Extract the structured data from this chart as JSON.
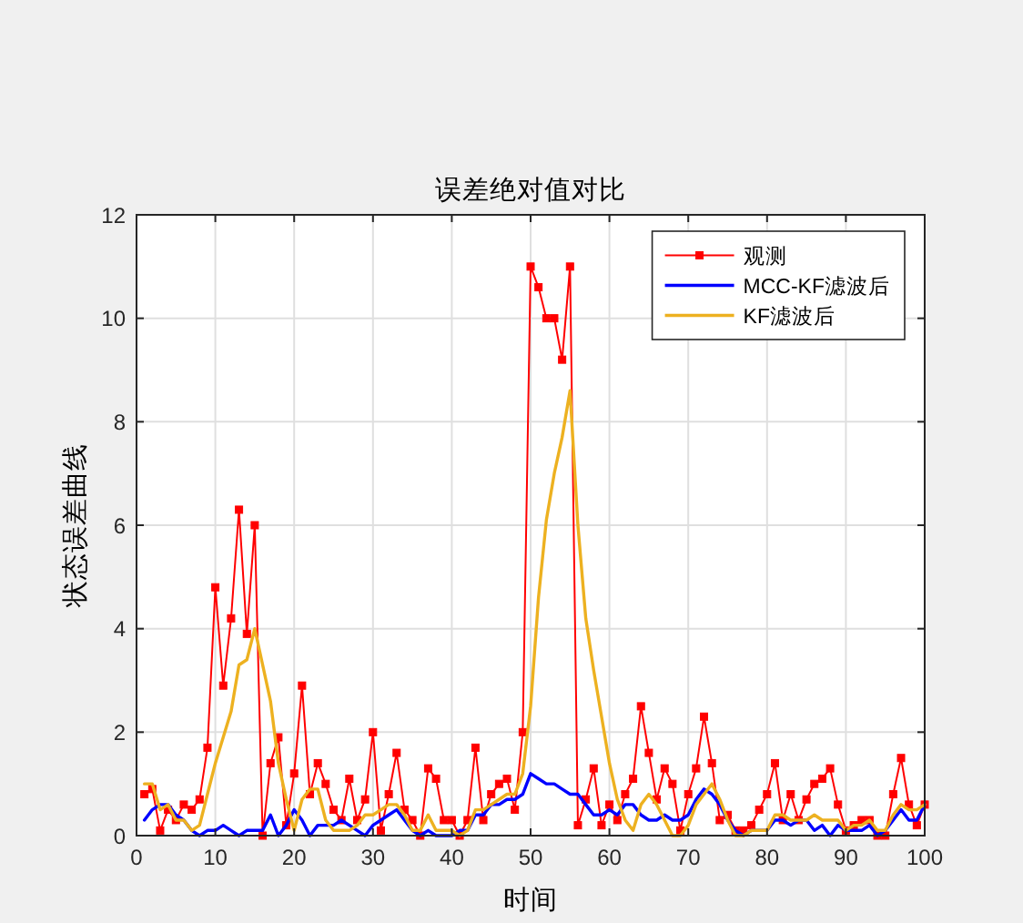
{
  "chart_data": {
    "type": "line",
    "title": "误差绝对值对比",
    "xlabel": "时间",
    "ylabel": "状态误差曲线",
    "x": [
      1,
      2,
      3,
      4,
      5,
      6,
      7,
      8,
      9,
      10,
      11,
      12,
      13,
      14,
      15,
      16,
      17,
      18,
      19,
      20,
      21,
      22,
      23,
      24,
      25,
      26,
      27,
      28,
      29,
      30,
      31,
      32,
      33,
      34,
      35,
      36,
      37,
      38,
      39,
      40,
      41,
      42,
      43,
      44,
      45,
      46,
      47,
      48,
      49,
      50,
      51,
      52,
      53,
      54,
      55,
      56,
      57,
      58,
      59,
      60,
      61,
      62,
      63,
      64,
      65,
      66,
      67,
      68,
      69,
      70,
      71,
      72,
      73,
      74,
      75,
      76,
      77,
      78,
      79,
      80,
      81,
      82,
      83,
      84,
      85,
      86,
      87,
      88,
      89,
      90,
      91,
      92,
      93,
      94,
      95,
      96,
      97,
      98,
      99,
      100
    ],
    "series": [
      {
        "name": "观测",
        "color": "#ff0000",
        "marker": "square",
        "values": [
          0.8,
          0.9,
          0.1,
          0.5,
          0.3,
          0.6,
          0.5,
          0.7,
          1.7,
          4.8,
          2.9,
          4.2,
          6.3,
          3.9,
          6.0,
          0.0,
          1.4,
          1.9,
          0.2,
          1.2,
          2.9,
          0.8,
          1.4,
          1.0,
          0.5,
          0.3,
          1.1,
          0.3,
          0.7,
          2.0,
          0.1,
          0.8,
          1.6,
          0.5,
          0.3,
          0.0,
          1.3,
          1.1,
          0.3,
          0.3,
          0.0,
          0.3,
          1.7,
          0.3,
          0.8,
          1.0,
          1.1,
          0.5,
          2.0,
          11.0,
          10.6,
          10.0,
          10.0,
          9.2,
          11.0,
          0.2,
          0.7,
          1.3,
          0.2,
          0.6,
          0.3,
          0.8,
          1.1,
          2.5,
          1.6,
          0.7,
          1.3,
          1.0,
          0.1,
          0.8,
          1.3,
          2.3,
          1.4,
          0.3,
          0.4,
          0.1,
          0.1,
          0.2,
          0.5,
          0.8,
          1.4,
          0.3,
          0.8,
          0.3,
          0.7,
          1.0,
          1.1,
          1.3,
          0.6,
          0.1,
          0.2,
          0.3,
          0.3,
          0.0,
          0.0,
          0.8,
          1.5,
          0.6,
          0.2,
          0.6
        ]
      },
      {
        "name": "MCC-KF滤波后",
        "color": "#0000ff",
        "values": [
          0.3,
          0.5,
          0.6,
          0.6,
          0.4,
          0.3,
          0.1,
          0.0,
          0.1,
          0.1,
          0.2,
          0.1,
          0.0,
          0.1,
          0.1,
          0.1,
          0.4,
          0.0,
          0.2,
          0.5,
          0.3,
          0.0,
          0.2,
          0.2,
          0.2,
          0.3,
          0.2,
          0.1,
          0.0,
          0.2,
          0.3,
          0.4,
          0.5,
          0.3,
          0.1,
          0.0,
          0.1,
          0.0,
          0.0,
          0.0,
          0.1,
          0.1,
          0.4,
          0.4,
          0.6,
          0.6,
          0.7,
          0.7,
          0.8,
          1.2,
          1.1,
          1.0,
          1.0,
          0.9,
          0.8,
          0.8,
          0.6,
          0.4,
          0.4,
          0.5,
          0.4,
          0.6,
          0.6,
          0.4,
          0.3,
          0.3,
          0.4,
          0.3,
          0.3,
          0.4,
          0.7,
          0.9,
          0.8,
          0.6,
          0.3,
          0.1,
          0.0,
          0.1,
          0.1,
          0.1,
          0.3,
          0.3,
          0.2,
          0.3,
          0.3,
          0.1,
          0.2,
          0.0,
          0.2,
          0.1,
          0.1,
          0.1,
          0.2,
          0.0,
          0.1,
          0.3,
          0.5,
          0.3,
          0.3,
          0.6
        ]
      },
      {
        "name": "KF滤波后",
        "color": "#edb120",
        "values": [
          1.0,
          1.0,
          0.5,
          0.6,
          0.3,
          0.3,
          0.1,
          0.2,
          0.8,
          1.4,
          1.9,
          2.4,
          3.3,
          3.4,
          4.0,
          3.3,
          2.6,
          1.4,
          0.7,
          0.1,
          0.7,
          0.9,
          0.9,
          0.3,
          0.1,
          0.1,
          0.1,
          0.2,
          0.4,
          0.4,
          0.5,
          0.6,
          0.6,
          0.4,
          0.1,
          0.1,
          0.4,
          0.1,
          0.1,
          0.1,
          0.0,
          0.1,
          0.5,
          0.5,
          0.6,
          0.7,
          0.8,
          0.8,
          1.2,
          2.5,
          4.6,
          6.1,
          7.0,
          7.7,
          8.6,
          6.0,
          4.2,
          3.2,
          2.3,
          1.4,
          0.7,
          0.3,
          0.1,
          0.6,
          0.8,
          0.6,
          0.3,
          0.0,
          0.0,
          0.2,
          0.6,
          0.8,
          1.0,
          0.7,
          0.3,
          0.0,
          0.0,
          0.1,
          0.1,
          0.1,
          0.4,
          0.4,
          0.3,
          0.3,
          0.3,
          0.4,
          0.3,
          0.3,
          0.3,
          0.1,
          0.2,
          0.2,
          0.3,
          0.1,
          0.1,
          0.4,
          0.6,
          0.5,
          0.5,
          0.6
        ]
      }
    ],
    "xlim": [
      0,
      100
    ],
    "xticks": [
      0,
      10,
      20,
      30,
      40,
      50,
      60,
      70,
      80,
      90,
      100
    ],
    "ylim": [
      0,
      12
    ],
    "yticks": [
      0,
      2,
      4,
      6,
      8,
      10,
      12
    ],
    "grid": true,
    "legend": "top right"
  }
}
